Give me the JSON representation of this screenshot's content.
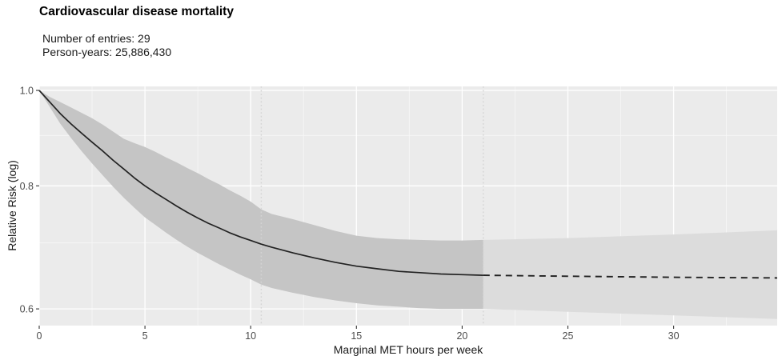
{
  "chart_data": {
    "type": "line",
    "title": "Cardiovascular disease mortality",
    "annotations": [
      "Number of entries: 29",
      "Person-years: 25,886,430"
    ],
    "xlabel": "Marginal MET hours per week",
    "ylabel": "Relative Risk (log)",
    "y_scale": "log10",
    "xlim": [
      0,
      34.9
    ],
    "ylim": [
      0.577,
      1.0094
    ],
    "grid": true,
    "legend": "none",
    "x_ticks": {
      "values": [
        0,
        5,
        10,
        15,
        20,
        25,
        30
      ],
      "labels": [
        "0",
        "5",
        "10",
        "15",
        "20",
        "25",
        "30"
      ]
    },
    "x_minor": [
      2.5,
      7.5,
      12.5,
      17.5,
      22.5,
      27.5,
      32.5
    ],
    "y_ticks": {
      "values": [
        1.0,
        0.8,
        0.6
      ],
      "labels": [
        "1.0",
        "0.8",
        "0.6"
      ]
    },
    "y_minor": [
      0.9,
      0.7
    ],
    "reference_lines_x": [
      10.5,
      21
    ],
    "series": [
      {
        "name": "estimated-relative-risk",
        "style": "solid",
        "points": [
          [
            0,
            1.0
          ],
          [
            0.5,
            0.973
          ],
          [
            1,
            0.947
          ],
          [
            1.5,
            0.925
          ],
          [
            2,
            0.905
          ],
          [
            2.5,
            0.886
          ],
          [
            3,
            0.868
          ],
          [
            3.5,
            0.849
          ],
          [
            4,
            0.832
          ],
          [
            4.5,
            0.815
          ],
          [
            5,
            0.8
          ],
          [
            5.5,
            0.787
          ],
          [
            6,
            0.775
          ],
          [
            6.5,
            0.763
          ],
          [
            7,
            0.752
          ],
          [
            7.5,
            0.742
          ],
          [
            8,
            0.733
          ],
          [
            8.5,
            0.725
          ],
          [
            9,
            0.717
          ],
          [
            9.5,
            0.71
          ],
          [
            10,
            0.704
          ],
          [
            10.5,
            0.698
          ],
          [
            11,
            0.693
          ],
          [
            12,
            0.684
          ],
          [
            13,
            0.676
          ],
          [
            14,
            0.669
          ],
          [
            15,
            0.663
          ],
          [
            16,
            0.659
          ],
          [
            17,
            0.655
          ],
          [
            18,
            0.653
          ],
          [
            19,
            0.651
          ],
          [
            20,
            0.65
          ],
          [
            21,
            0.649
          ]
        ]
      },
      {
        "name": "extrapolated-relative-risk",
        "style": "dashed",
        "points": [
          [
            21,
            0.649
          ],
          [
            24,
            0.648
          ],
          [
            27,
            0.647
          ],
          [
            30,
            0.646
          ],
          [
            34.9,
            0.645
          ]
        ]
      }
    ],
    "bands": [
      {
        "name": "confidence-band-observed",
        "upper": [
          [
            0,
            1.0
          ],
          [
            0.5,
            0.985
          ],
          [
            1,
            0.973
          ],
          [
            1.5,
            0.961
          ],
          [
            2,
            0.949
          ],
          [
            2.5,
            0.937
          ],
          [
            3,
            0.923
          ],
          [
            3.5,
            0.908
          ],
          [
            4,
            0.893
          ],
          [
            4.5,
            0.884
          ],
          [
            5,
            0.876
          ],
          [
            5.5,
            0.866
          ],
          [
            6,
            0.855
          ],
          [
            6.5,
            0.845
          ],
          [
            7,
            0.834
          ],
          [
            7.5,
            0.824
          ],
          [
            8,
            0.813
          ],
          [
            8.5,
            0.803
          ],
          [
            9,
            0.792
          ],
          [
            9.5,
            0.782
          ],
          [
            10,
            0.771
          ],
          [
            10.5,
            0.757
          ],
          [
            11,
            0.749
          ],
          [
            12,
            0.74
          ],
          [
            13,
            0.73
          ],
          [
            14,
            0.72
          ],
          [
            15,
            0.712
          ],
          [
            16,
            0.708
          ],
          [
            17,
            0.706
          ],
          [
            18,
            0.705
          ],
          [
            19,
            0.704
          ],
          [
            20,
            0.704
          ],
          [
            21,
            0.705
          ]
        ],
        "lower": [
          [
            0,
            1.0
          ],
          [
            0.5,
            0.962
          ],
          [
            1,
            0.925
          ],
          [
            1.5,
            0.895
          ],
          [
            2,
            0.868
          ],
          [
            2.5,
            0.843
          ],
          [
            3,
            0.82
          ],
          [
            3.5,
            0.798
          ],
          [
            4,
            0.778
          ],
          [
            4.5,
            0.76
          ],
          [
            5,
            0.743
          ],
          [
            5.5,
            0.73
          ],
          [
            6,
            0.717
          ],
          [
            6.5,
            0.705
          ],
          [
            7,
            0.694
          ],
          [
            7.5,
            0.684
          ],
          [
            8,
            0.675
          ],
          [
            8.5,
            0.666
          ],
          [
            9,
            0.658
          ],
          [
            9.5,
            0.65
          ],
          [
            10,
            0.643
          ],
          [
            10.5,
            0.635
          ],
          [
            11,
            0.63
          ],
          [
            12,
            0.623
          ],
          [
            13,
            0.617
          ],
          [
            14,
            0.612
          ],
          [
            15,
            0.608
          ],
          [
            16,
            0.605
          ],
          [
            17,
            0.603
          ],
          [
            18,
            0.601
          ],
          [
            19,
            0.6
          ],
          [
            20,
            0.6
          ],
          [
            21,
            0.6
          ]
        ]
      },
      {
        "name": "confidence-band-extrapolated",
        "upper": [
          [
            21,
            0.705
          ],
          [
            25,
            0.708
          ],
          [
            30,
            0.714
          ],
          [
            34.9,
            0.721
          ]
        ],
        "lower": [
          [
            21,
            0.6
          ],
          [
            25,
            0.596
          ],
          [
            30,
            0.591
          ],
          [
            34.9,
            0.586
          ]
        ]
      }
    ],
    "colors": {
      "panel_bg": "#ebebeb",
      "grid_major": "#ffffff",
      "grid_minor": "#f7f7f7",
      "band_observed": "#c5c5c5",
      "band_extrapolated": "#dcdcdc",
      "curve": "#222222",
      "reference_line": "#d4d4d4",
      "tick_mark": "#333333",
      "tick_label": "#4d4d4d"
    }
  }
}
